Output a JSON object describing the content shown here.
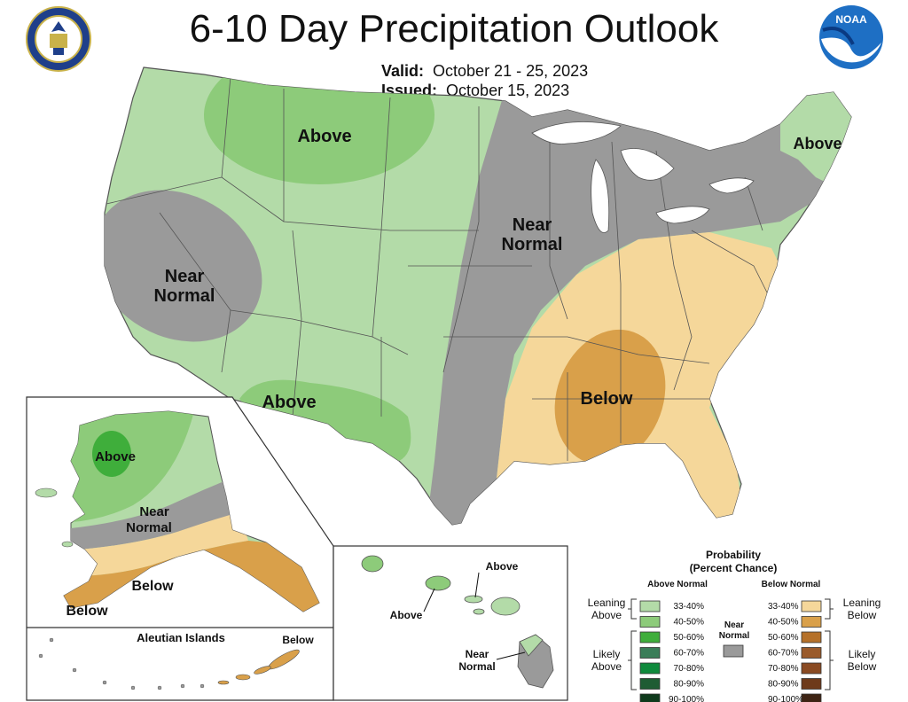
{
  "title": "6-10 Day Precipitation Outlook",
  "valid_label": "Valid:",
  "valid_value": "October 21 - 25, 2023",
  "issued_label": "Issued:",
  "issued_value": "October 15, 2023",
  "logos": {
    "left": "department-of-commerce-seal",
    "right_text": "NOAA"
  },
  "regions": {
    "conus_above_north": "Above",
    "conus_near_west_1": "Near",
    "conus_near_west_2": "Normal",
    "conus_above_sw": "Above",
    "conus_near_mid_1": "Near",
    "conus_near_mid_2": "Normal",
    "conus_below_se": "Below",
    "conus_above_ne": "Above",
    "ak_above": "Above",
    "ak_near_1": "Near",
    "ak_near_2": "Normal",
    "ak_below_1": "Below",
    "ak_below_2": "Below",
    "aleutian_title": "Aleutian Islands",
    "aleutian_below": "Below",
    "hi_above_1": "Above",
    "hi_above_2": "Above",
    "hi_near_1": "Near",
    "hi_near_2": "Normal"
  },
  "legend": {
    "title_1": "Probability",
    "title_2": "(Percent Chance)",
    "above_header": "Above Normal",
    "below_header": "Below Normal",
    "near_1": "Near",
    "near_2": "Normal",
    "near_color": "#9a9a9a",
    "leaning_above_1": "Leaning",
    "leaning_above_2": "Above",
    "likely_above_1": "Likely",
    "likely_above_2": "Above",
    "leaning_below_1": "Leaning",
    "leaning_below_2": "Below",
    "likely_below_1": "Likely",
    "likely_below_2": "Below",
    "above": [
      {
        "range": "33-40%",
        "color": "#b3dba8"
      },
      {
        "range": "40-50%",
        "color": "#8dcb7a"
      },
      {
        "range": "50-60%",
        "color": "#3fae3b"
      },
      {
        "range": "60-70%",
        "color": "#3a7d58"
      },
      {
        "range": "70-80%",
        "color": "#0f8a3c"
      },
      {
        "range": "80-90%",
        "color": "#1f5c33"
      },
      {
        "range": "90-100%",
        "color": "#0f3a1c"
      }
    ],
    "below": [
      {
        "range": "33-40%",
        "color": "#f5d79a"
      },
      {
        "range": "40-50%",
        "color": "#d9a04a"
      },
      {
        "range": "50-60%",
        "color": "#b5712a"
      },
      {
        "range": "60-70%",
        "color": "#9a5a2a"
      },
      {
        "range": "70-80%",
        "color": "#8a4a22"
      },
      {
        "range": "80-90%",
        "color": "#6e3a1a"
      },
      {
        "range": "90-100%",
        "color": "#3e2414"
      }
    ]
  },
  "colors": {
    "above_33": "#b3dba8",
    "above_40": "#8dcb7a",
    "above_50": "#3fae3b",
    "below_33": "#f5d79a",
    "below_40": "#d9a04a",
    "near": "#9a9a9a",
    "border": "#555555"
  }
}
